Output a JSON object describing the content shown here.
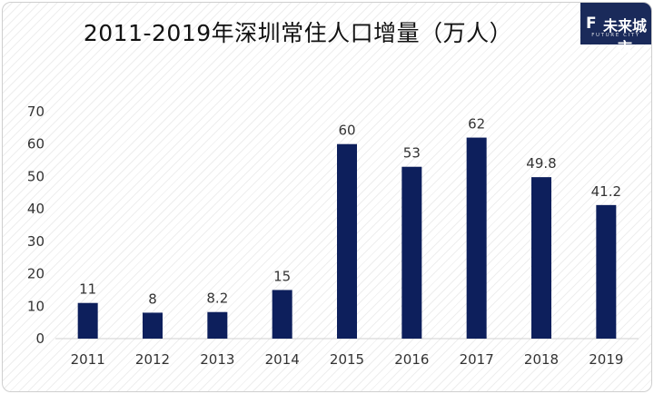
{
  "chart_data": {
    "type": "bar",
    "title": "2011-2019年深圳常住人口增量（万人）",
    "categories": [
      "2011",
      "2012",
      "2013",
      "2014",
      "2015",
      "2016",
      "2017",
      "2018",
      "2019"
    ],
    "values": [
      11,
      8,
      8.2,
      15,
      60,
      53,
      62,
      49.8,
      41.2
    ],
    "data_labels": [
      "11",
      "8",
      "8.2",
      "15",
      "60",
      "53",
      "62",
      "49.8",
      "41.2"
    ],
    "y_ticks": [
      0,
      10,
      20,
      30,
      40,
      50,
      60,
      70
    ],
    "ylim": [
      0,
      70
    ],
    "grid": false,
    "legend": "none",
    "bar_color": "#0d1f5c"
  },
  "logo": {
    "mark": "F",
    "name": "未来城市",
    "sub": "FUTURE CITY",
    "bg_color": "#1a2a5a"
  }
}
